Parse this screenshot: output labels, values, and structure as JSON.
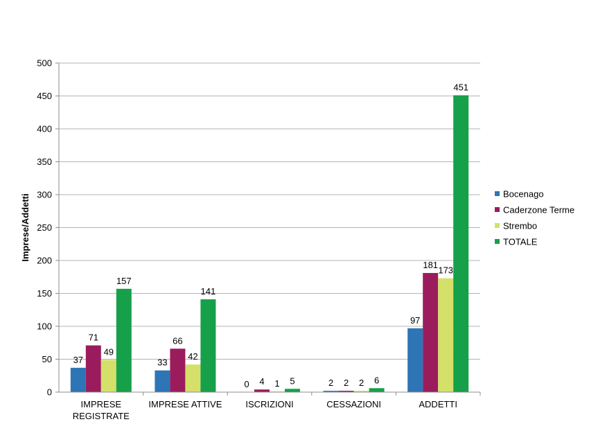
{
  "chart_data": {
    "type": "bar",
    "ylabel": "Imprese/Addetti",
    "ylim": [
      0,
      500
    ],
    "yticks": [
      0,
      50,
      100,
      150,
      200,
      250,
      300,
      350,
      400,
      450,
      500
    ],
    "grid": true,
    "legend_position": "right",
    "categories": [
      [
        "IMPRESE",
        "REGISTRATE"
      ],
      [
        "IMPRESE ATTIVE"
      ],
      [
        "ISCRIZIONI"
      ],
      [
        "CESSAZIONI"
      ],
      [
        "ADDETTI"
      ]
    ],
    "series": [
      {
        "name": "Bocenago",
        "color": "#2e75b6",
        "values": [
          37,
          33,
          0,
          2,
          97
        ]
      },
      {
        "name": "Caderzone Terme",
        "color": "#9b1c5c",
        "values": [
          71,
          66,
          4,
          2,
          181
        ]
      },
      {
        "name": "Strembo",
        "color": "#d4e06a",
        "values": [
          49,
          42,
          1,
          2,
          173
        ]
      },
      {
        "name": "TOTALE",
        "color": "#16a04a",
        "values": [
          157,
          141,
          5,
          6,
          451
        ]
      }
    ]
  }
}
